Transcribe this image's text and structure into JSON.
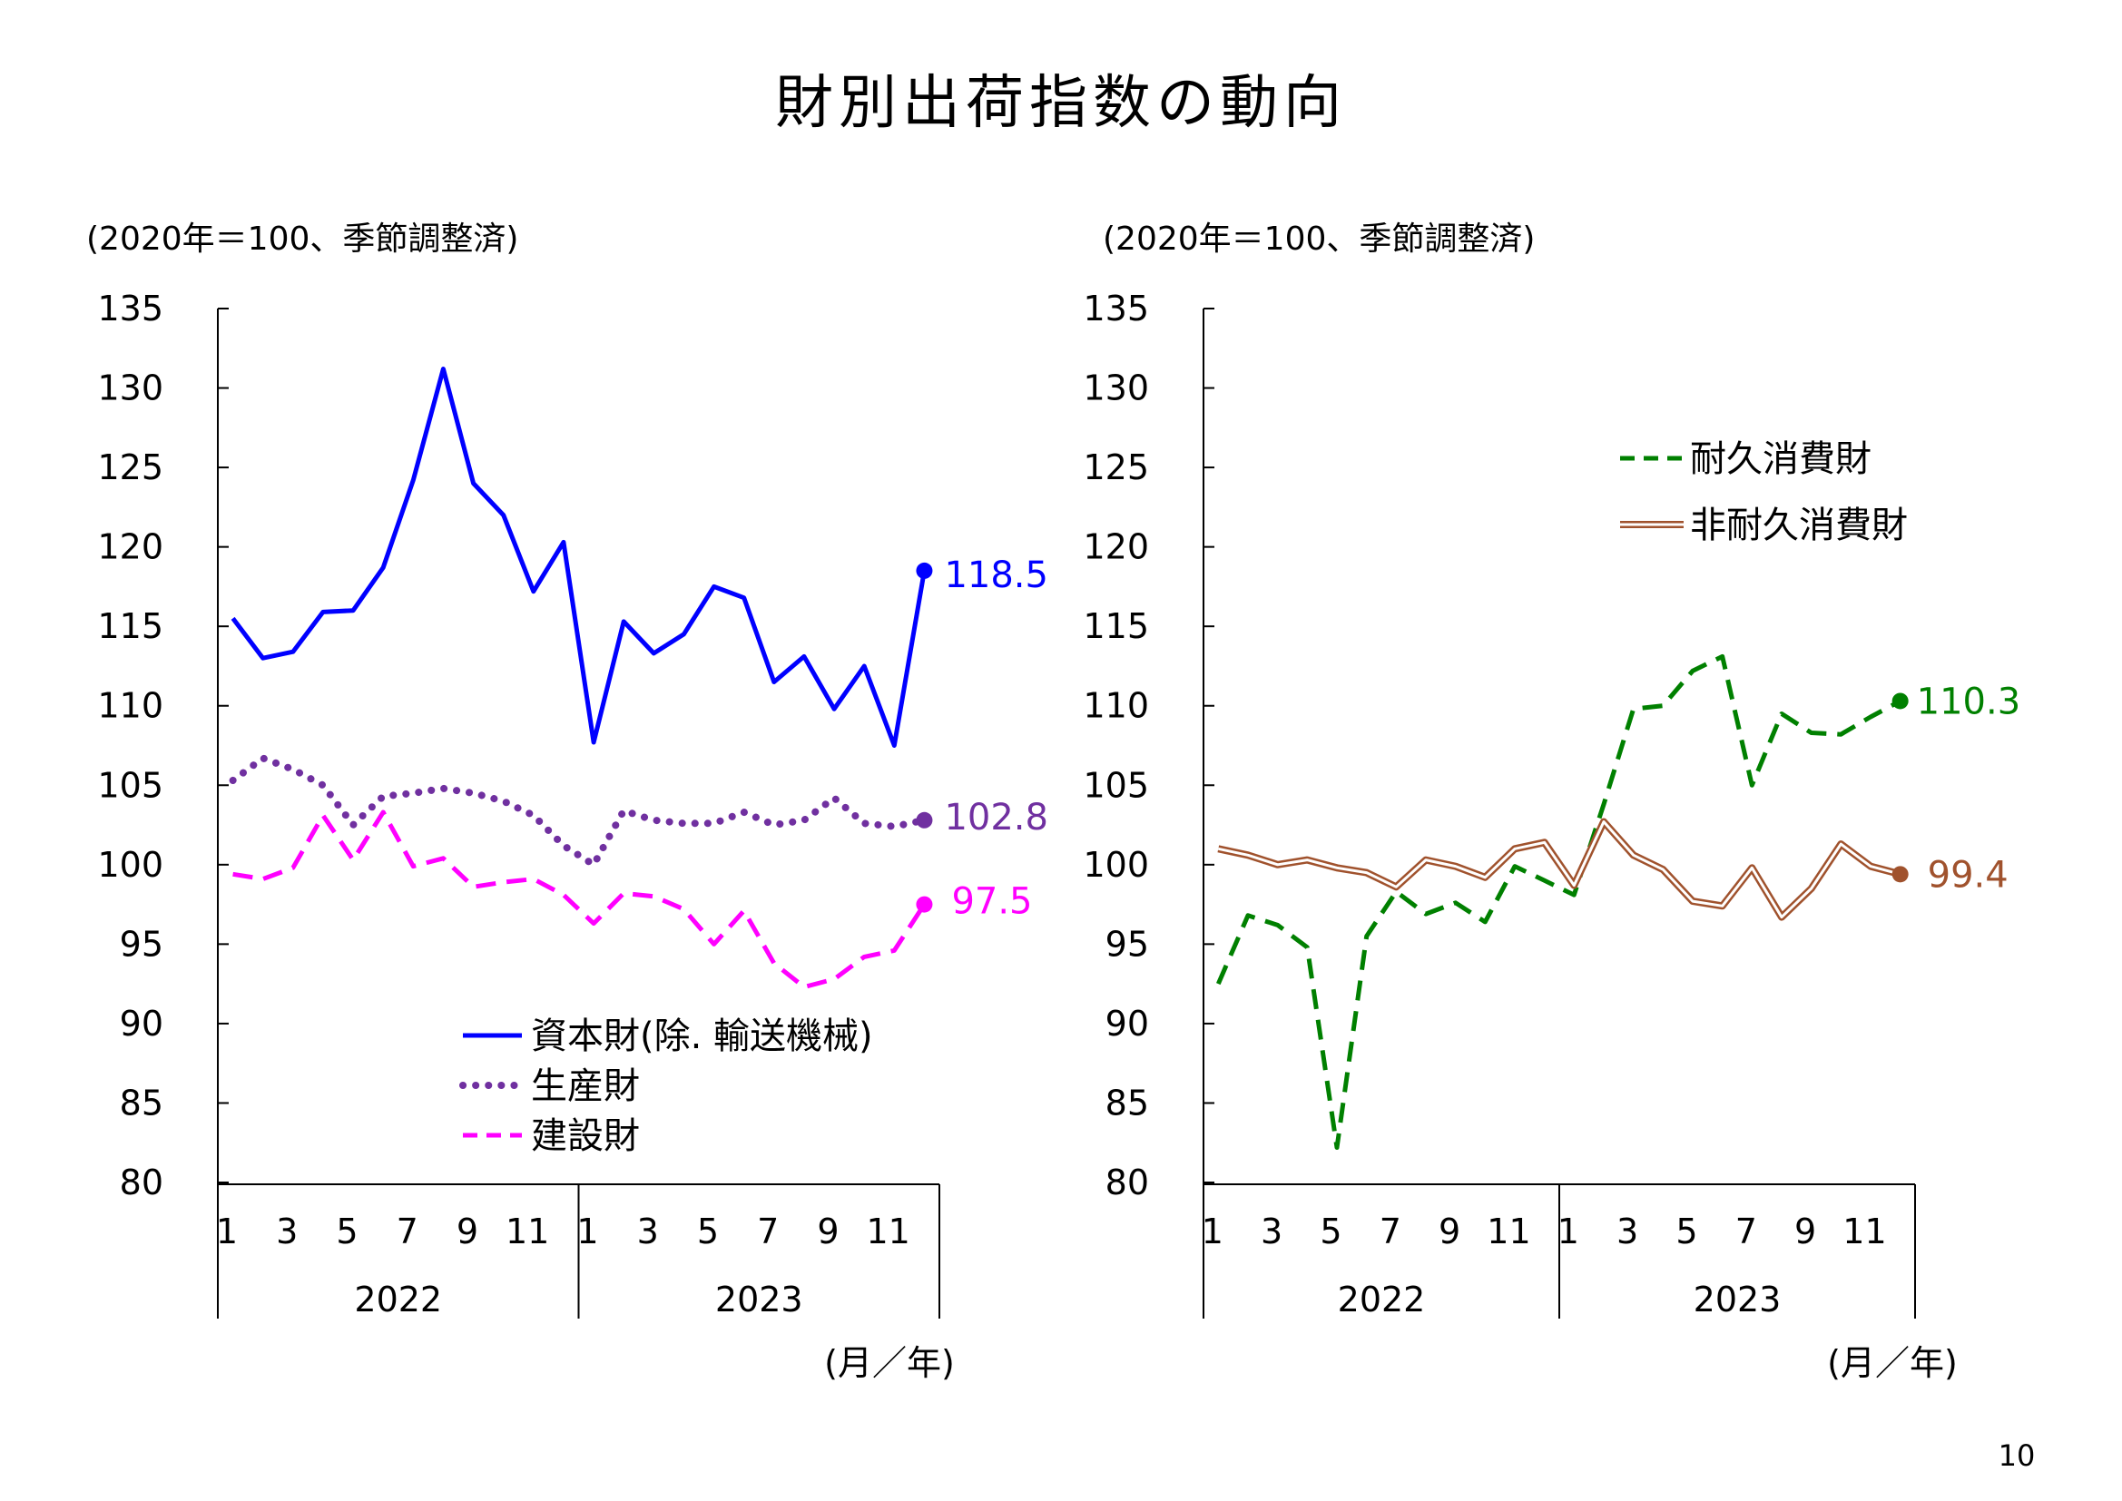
{
  "page": {
    "title": "財別出荷指数の動向",
    "page_number": "10"
  },
  "chart_data": [
    {
      "type": "line",
      "note": "(2020年＝100、季節調整済)",
      "xlabel": "(月／年)",
      "ylim": [
        80,
        135
      ],
      "yticks": [
        "80",
        "85",
        "90",
        "95",
        "100",
        "105",
        "110",
        "115",
        "120",
        "125",
        "130",
        "135"
      ],
      "month_labels": [
        "1",
        "3",
        "5",
        "7",
        "9",
        "11",
        "1",
        "3",
        "5",
        "7",
        "9",
        "11"
      ],
      "year_labels": [
        "2022",
        "2023"
      ],
      "x": [
        "2022-01",
        "2022-02",
        "2022-03",
        "2022-04",
        "2022-05",
        "2022-06",
        "2022-07",
        "2022-08",
        "2022-09",
        "2022-10",
        "2022-11",
        "2022-12",
        "2023-01",
        "2023-02",
        "2023-03",
        "2023-04",
        "2023-05",
        "2023-06",
        "2023-07",
        "2023-08",
        "2023-09",
        "2023-10",
        "2023-11",
        "2023-12"
      ],
      "legend": "bottom-center",
      "series": [
        {
          "name": "資本財(除. 輸送機械)",
          "color": "#0000ff",
          "style": "solid",
          "end_label": "118.5",
          "values": [
            115.5,
            113.0,
            113.4,
            115.9,
            116.0,
            118.7,
            124.2,
            131.2,
            124.0,
            122.0,
            117.2,
            120.3,
            107.7,
            115.3,
            113.3,
            114.5,
            117.5,
            116.8,
            111.5,
            113.1,
            109.8,
            112.5,
            107.5,
            118.5
          ]
        },
        {
          "name": "生産財",
          "color": "#7030a0",
          "style": "dotted",
          "end_label": "102.8",
          "values": [
            105.3,
            106.7,
            106.0,
            105.0,
            102.5,
            104.3,
            104.5,
            104.8,
            104.5,
            104.0,
            103.1,
            101.2,
            100.0,
            103.4,
            102.8,
            102.6,
            102.6,
            103.3,
            102.5,
            102.8,
            104.2,
            102.6,
            102.4,
            102.8
          ]
        },
        {
          "name": "建設財",
          "color": "#ff00ff",
          "style": "dashed",
          "end_label": "97.5",
          "values": [
            99.4,
            99.1,
            99.8,
            103.1,
            100.3,
            103.3,
            99.9,
            100.4,
            98.6,
            98.9,
            99.1,
            98.1,
            96.3,
            98.2,
            98.0,
            97.2,
            95.0,
            97.1,
            93.8,
            92.3,
            92.8,
            94.2,
            94.6,
            97.5
          ]
        }
      ]
    },
    {
      "type": "line",
      "note": "(2020年＝100、季節調整済)",
      "xlabel": "(月／年)",
      "ylim": [
        80,
        135
      ],
      "yticks": [
        "80",
        "85",
        "90",
        "95",
        "100",
        "105",
        "110",
        "115",
        "120",
        "125",
        "130",
        "135"
      ],
      "month_labels": [
        "1",
        "3",
        "5",
        "7",
        "9",
        "11",
        "1",
        "3",
        "5",
        "7",
        "9",
        "11"
      ],
      "year_labels": [
        "2022",
        "2023"
      ],
      "x": [
        "2022-01",
        "2022-02",
        "2022-03",
        "2022-04",
        "2022-05",
        "2022-06",
        "2022-07",
        "2022-08",
        "2022-09",
        "2022-10",
        "2022-11",
        "2022-12",
        "2023-01",
        "2023-02",
        "2023-03",
        "2023-04",
        "2023-05",
        "2023-06",
        "2023-07",
        "2023-08",
        "2023-09",
        "2023-10",
        "2023-11",
        "2023-12"
      ],
      "legend": "top-right",
      "series": [
        {
          "name": "耐久消費財",
          "color": "#008000",
          "style": "dashed",
          "end_label": "110.3",
          "values": [
            92.5,
            96.8,
            96.2,
            94.8,
            82.2,
            95.5,
            98.3,
            96.9,
            97.6,
            96.4,
            99.9,
            99.0,
            98.1,
            103.8,
            109.8,
            110.0,
            112.2,
            113.1,
            105.0,
            109.5,
            108.3,
            108.2,
            109.3,
            110.3
          ]
        },
        {
          "name": "非耐久消費財",
          "color": "#a0522d",
          "style": "double",
          "end_label": "99.4",
          "values": [
            101.0,
            100.6,
            100.0,
            100.3,
            99.8,
            99.5,
            98.6,
            100.3,
            99.9,
            99.2,
            101.0,
            101.4,
            98.7,
            102.7,
            100.6,
            99.7,
            97.7,
            97.4,
            99.8,
            96.7,
            98.5,
            101.3,
            99.9,
            99.4
          ]
        }
      ]
    }
  ]
}
